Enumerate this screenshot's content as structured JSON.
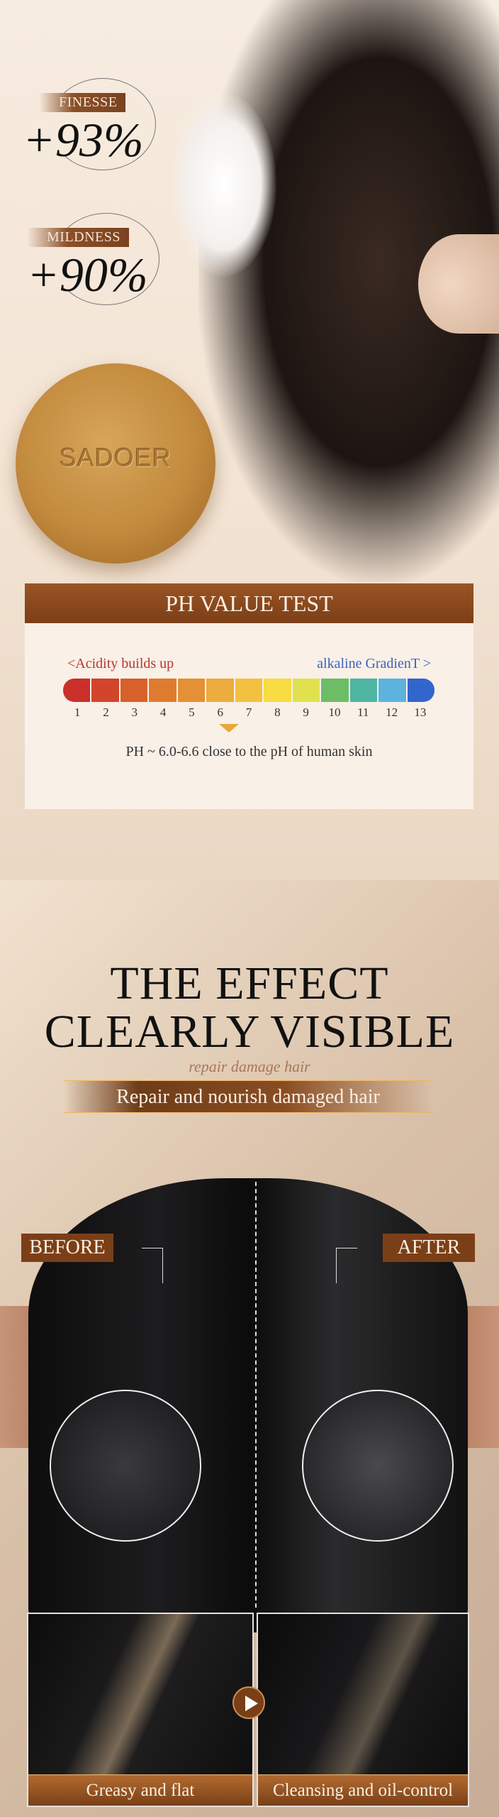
{
  "hero": {
    "brand": "SADOER",
    "stats": [
      {
        "label": "FINESSE",
        "value": "+93%"
      },
      {
        "label": "MILDNESS",
        "value": "+90%"
      }
    ]
  },
  "ph_test": {
    "title": "PH VALUE TEST",
    "acid_label": "<Acidity builds up",
    "alkaline_label": "alkaline GradienT >",
    "acid_color": "#b8362a",
    "alkaline_color": "#3e63b8",
    "scale": [
      1,
      2,
      3,
      4,
      5,
      6,
      7,
      8,
      9,
      10,
      11,
      12,
      13
    ],
    "colors": [
      "#c9302a",
      "#d2452a",
      "#d8602a",
      "#df7b2f",
      "#e59034",
      "#ecac3e",
      "#f3c142",
      "#f7dc44",
      "#dfe24e",
      "#6cbd66",
      "#4eb5a3",
      "#5cb3de",
      "#3366cc"
    ],
    "marker_value": 6.3,
    "note": "PH ~ 6.0-6.6 close to the pH of human skin"
  },
  "effect": {
    "title_line1": "THE EFFECT",
    "title_line2": "CLEARLY VISIBLE",
    "watermark": "repair damage hair",
    "subtitle": "Repair and nourish damaged hair",
    "before": "BEFORE",
    "after": "AFTER",
    "compare_left": "Greasy and flat",
    "compare_right": "Cleansing and oil-control"
  }
}
